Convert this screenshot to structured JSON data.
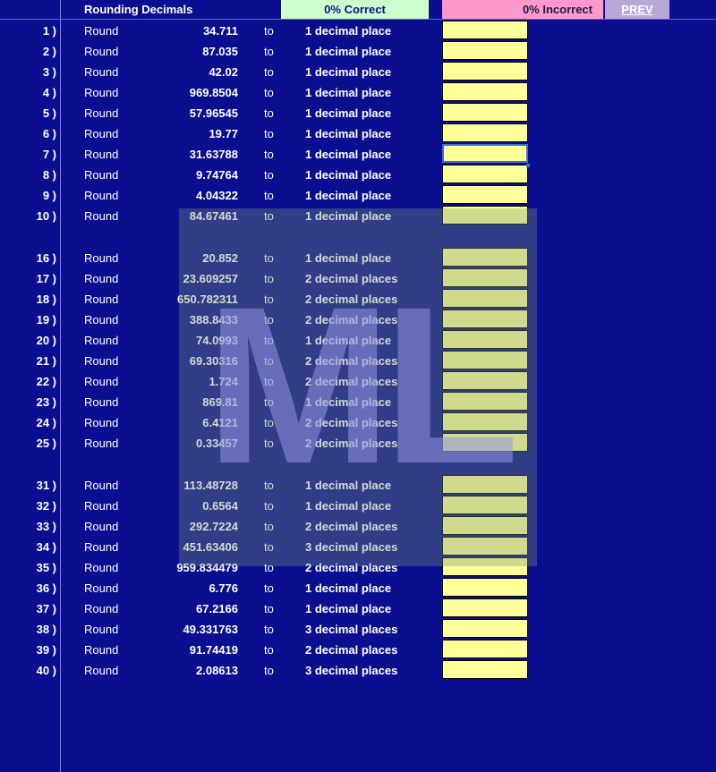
{
  "header": {
    "title": "Rounding Decimals",
    "correct_label": "0% Correct",
    "incorrect_label": "0% Incorrect",
    "prev_label": "PREV"
  },
  "labels": {
    "round": "Round",
    "to": "to"
  },
  "watermark": "ML",
  "colors": {
    "background": "#0b0f8f",
    "answer_cell": "#ffff99",
    "correct_box": "#ccffcc",
    "incorrect_box": "#ff99cc",
    "prev_button": "#b8a8d8"
  },
  "problems": [
    {
      "num": "1 )",
      "value": "34.711",
      "places": "1 decimal place"
    },
    {
      "num": "2 )",
      "value": "87.035",
      "places": "1 decimal place"
    },
    {
      "num": "3 )",
      "value": "42.02",
      "places": "1 decimal place"
    },
    {
      "num": "4 )",
      "value": "969.8504",
      "places": "1 decimal place"
    },
    {
      "num": "5 )",
      "value": "57.96545",
      "places": "1 decimal place"
    },
    {
      "num": "6 )",
      "value": "19.77",
      "places": "1 decimal place"
    },
    {
      "num": "7 )",
      "value": "31.63788",
      "places": "1 decimal place",
      "selected": true
    },
    {
      "num": "8 )",
      "value": "9.74764",
      "places": "1 decimal place"
    },
    {
      "num": "9 )",
      "value": "4.04322",
      "places": "1 decimal place"
    },
    {
      "num": "10 )",
      "value": "84.67461",
      "places": "1 decimal place"
    },
    {
      "num": "16 )",
      "value": "20.852",
      "places": "1 decimal place"
    },
    {
      "num": "17 )",
      "value": "23.609257",
      "places": "2 decimal places"
    },
    {
      "num": "18 )",
      "value": "650.782311",
      "places": "2 decimal places"
    },
    {
      "num": "19 )",
      "value": "388.8433",
      "places": "2 decimal places"
    },
    {
      "num": "20 )",
      "value": "74.0993",
      "places": "1 decimal place"
    },
    {
      "num": "21 )",
      "value": "69.30316",
      "places": "2 decimal places"
    },
    {
      "num": "22 )",
      "value": "1.724",
      "places": "2 decimal places"
    },
    {
      "num": "23 )",
      "value": "869.81",
      "places": "1 decimal place"
    },
    {
      "num": "24 )",
      "value": "6.4121",
      "places": "2 decimal places"
    },
    {
      "num": "25 )",
      "value": "0.33457",
      "places": "2 decimal places"
    },
    {
      "num": "31 )",
      "value": "113.48728",
      "places": "1 decimal place"
    },
    {
      "num": "32 )",
      "value": "0.6564",
      "places": "1 decimal place"
    },
    {
      "num": "33 )",
      "value": "292.7224",
      "places": "2 decimal places"
    },
    {
      "num": "34 )",
      "value": "451.63406",
      "places": "3 decimal places"
    },
    {
      "num": "35 )",
      "value": "959.834479",
      "places": "2 decimal places"
    },
    {
      "num": "36 )",
      "value": "6.776",
      "places": "1 decimal place"
    },
    {
      "num": "37 )",
      "value": "67.2166",
      "places": "1 decimal place"
    },
    {
      "num": "38 )",
      "value": "49.331763",
      "places": "3 decimal places"
    },
    {
      "num": "39 )",
      "value": "91.74419",
      "places": "2 decimal places"
    },
    {
      "num": "40 )",
      "value": "2.08613",
      "places": "3 decimal places"
    }
  ]
}
